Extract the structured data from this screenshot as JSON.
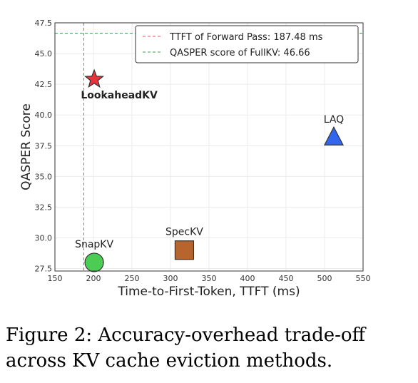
{
  "chart_data": {
    "type": "scatter",
    "xlabel": "Time-to-First-Token, TTFT (ms)",
    "ylabel": "QASPER Score",
    "xlim": [
      150,
      550
    ],
    "ylim": [
      27.3,
      47.5
    ],
    "xticks": [
      150,
      200,
      250,
      300,
      350,
      400,
      450,
      500,
      550
    ],
    "yticks": [
      27.5,
      30.0,
      32.5,
      35.0,
      37.5,
      40.0,
      42.5,
      45.0,
      47.5
    ],
    "grid": true,
    "legend_position": "top-right",
    "points": [
      {
        "label": "LookaheadKV",
        "x": 201,
        "y": 42.9,
        "marker": "star",
        "color": "#e8323c",
        "bold": true,
        "label_position": "below"
      },
      {
        "label": "LAQ",
        "x": 512,
        "y": 38.2,
        "marker": "triangle",
        "color": "#3366ee",
        "bold": false,
        "label_position": "above"
      },
      {
        "label": "SpecKV",
        "x": 318,
        "y": 29.0,
        "marker": "square",
        "color": "#b5652d",
        "bold": false,
        "label_position": "above"
      },
      {
        "label": "SnapKV",
        "x": 201,
        "y": 28.0,
        "marker": "circle",
        "color": "#4ccc55",
        "bold": false,
        "label_position": "above"
      }
    ],
    "reference_lines": [
      {
        "orientation": "vertical",
        "value": 187.48,
        "color": "#e8505a",
        "label": "TTFT of Forward Pass: 187.48 ms"
      },
      {
        "orientation": "horizontal",
        "value": 46.66,
        "color": "#44994f",
        "label": "QASPER score of FullKV: 46.66"
      }
    ]
  },
  "caption": "Figure 2: Accuracy-overhead trade-off across KV cache eviction methods."
}
